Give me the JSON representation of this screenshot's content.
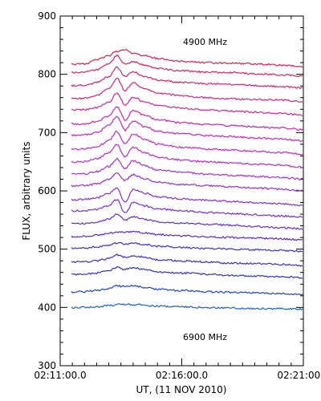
{
  "chart_data": {
    "type": "line",
    "xlabel": "UT, (11 NOV 2010)",
    "ylabel": "FLUX, arbitrary units",
    "xlim": [
      "02:11:00.0",
      "02:21:00.0"
    ],
    "x_ticks": [
      "02:11:00.0",
      "02:16:00.0",
      "02:21:00.0"
    ],
    "ylim": [
      300,
      900
    ],
    "y_ticks": [
      300,
      400,
      500,
      600,
      700,
      800,
      900
    ],
    "annotations": [
      "4900 MHz",
      "6900 MHz"
    ],
    "sample_times": [
      "02:11:00.0",
      "02:12:00.0",
      "02:12:30.0",
      "02:13:00.0",
      "02:13:20.0",
      "02:13:40.0",
      "02:14:00.0",
      "02:14:30.0",
      "02:15:00.0",
      "02:16:00.0",
      "02:17:00.0",
      "02:18:00.0",
      "02:19:00.0",
      "02:20:00.0",
      "02:21:00.0"
    ],
    "series": [
      {
        "color": "#e0204a",
        "values": [
          816,
          818,
          825,
          832,
          840,
          843,
          836,
          832,
          827,
          822,
          820,
          819,
          818,
          816,
          813
        ]
      },
      {
        "color": "#e0205e",
        "values": [
          802,
          803,
          808,
          818,
          832,
          818,
          822,
          815,
          810,
          806,
          804,
          803,
          801,
          799,
          797
        ]
      },
      {
        "color": "#dc2072",
        "values": [
          780,
          781,
          786,
          796,
          812,
          797,
          804,
          796,
          790,
          786,
          784,
          783,
          781,
          779,
          777
        ]
      },
      {
        "color": "#d82286",
        "values": [
          758,
          759,
          764,
          775,
          793,
          772,
          786,
          775,
          768,
          763,
          760,
          758,
          757,
          756,
          753
        ]
      },
      {
        "color": "#d4229a",
        "values": [
          739,
          739,
          743,
          752,
          768,
          748,
          761,
          752,
          746,
          742,
          739,
          737,
          735,
          733,
          730
        ]
      },
      {
        "color": "#d024ae",
        "values": [
          715,
          715,
          719,
          728,
          744,
          722,
          738,
          729,
          722,
          717,
          714,
          712,
          710,
          708,
          705
        ]
      },
      {
        "color": "#cc26c0",
        "values": [
          695,
          696,
          700,
          712,
          728,
          704,
          720,
          710,
          702,
          698,
          695,
          693,
          691,
          689,
          686
        ]
      },
      {
        "color": "#c428cc",
        "values": [
          671,
          672,
          676,
          686,
          702,
          680,
          698,
          688,
          680,
          675,
          672,
          670,
          668,
          666,
          663
        ]
      },
      {
        "color": "#b82ad0",
        "values": [
          649,
          650,
          655,
          665,
          680,
          658,
          675,
          665,
          658,
          653,
          650,
          648,
          646,
          644,
          641
        ]
      },
      {
        "color": "#aa2cd4",
        "values": [
          628,
          629,
          633,
          642,
          655,
          638,
          652,
          643,
          636,
          632,
          629,
          627,
          625,
          623,
          620
        ]
      },
      {
        "color": "#9a2cd6",
        "values": [
          608,
          609,
          612,
          620,
          630,
          618,
          628,
          621,
          615,
          611,
          609,
          607,
          605,
          603,
          600
        ]
      },
      {
        "color": "#8a2cd8",
        "values": [
          584,
          585,
          588,
          596,
          605,
          580,
          602,
          596,
          590,
          586,
          584,
          582,
          580,
          578,
          575
        ]
      },
      {
        "color": "#7a2cd8",
        "values": [
          565,
          566,
          568,
          575,
          585,
          562,
          580,
          574,
          569,
          566,
          563,
          561,
          559,
          557,
          555
        ]
      },
      {
        "color": "#6a2cd8",
        "values": [
          543,
          544,
          546,
          552,
          560,
          550,
          556,
          551,
          547,
          545,
          543,
          541,
          539,
          537,
          535
        ]
      },
      {
        "color": "#5a2ad6",
        "values": [
          521,
          522,
          524,
          527,
          530,
          529,
          530,
          528,
          525,
          523,
          521,
          520,
          519,
          518,
          516
        ]
      },
      {
        "color": "#4a2ad4",
        "values": [
          501,
          502,
          504,
          507,
          511,
          509,
          510,
          508,
          505,
          503,
          501,
          500,
          499,
          498,
          496
        ]
      },
      {
        "color": "#3a2cd2",
        "values": [
          477,
          478,
          480,
          484,
          490,
          486,
          489,
          486,
          482,
          480,
          478,
          476,
          475,
          474,
          472
        ]
      },
      {
        "color": "#2c30d0",
        "values": [
          456,
          457,
          459,
          463,
          469,
          465,
          468,
          465,
          461,
          459,
          457,
          455,
          454,
          453,
          451
        ]
      },
      {
        "color": "#2040cc",
        "values": [
          426,
          427,
          429,
          432,
          437,
          436,
          437,
          434,
          431,
          429,
          427,
          426,
          425,
          424,
          422
        ]
      },
      {
        "color": "#1a64c8",
        "values": [
          399,
          400,
          401,
          403,
          405,
          405,
          405,
          404,
          402,
          401,
          400,
          399,
          398,
          398,
          397
        ]
      }
    ]
  }
}
